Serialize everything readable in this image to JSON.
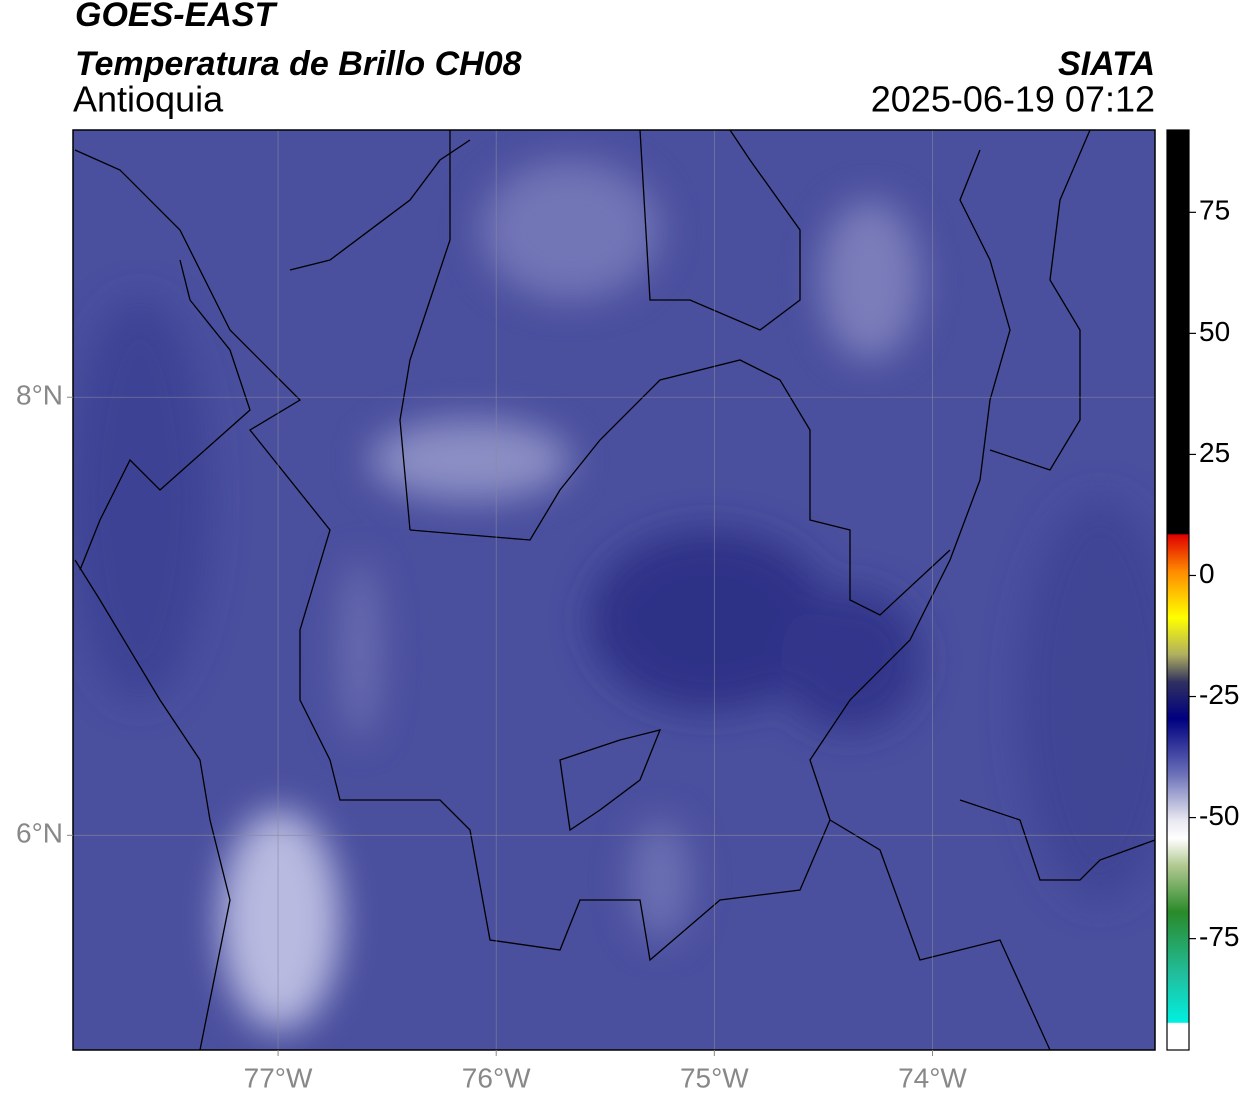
{
  "header": {
    "title": "GOES-EAST",
    "subtitle": "Temperatura de Brillo CH08",
    "region": "Antioquia",
    "source": "SIATA",
    "datetime": "2025-06-19 07:12"
  },
  "map": {
    "xlim": [
      -77.94,
      -72.98
    ],
    "ylim": [
      5.02,
      9.22
    ],
    "xticks": [
      {
        "value": -77,
        "label": "77°W"
      },
      {
        "value": -76,
        "label": "76°W"
      },
      {
        "value": -75,
        "label": "75°W"
      },
      {
        "value": -74,
        "label": "74°W"
      }
    ],
    "yticks": [
      {
        "value": 8,
        "label": "8°N"
      },
      {
        "value": 6,
        "label": "6°N"
      }
    ],
    "grid": true
  },
  "colorbar": {
    "lim": [
      -98,
      92
    ],
    "ticks": [
      75,
      50,
      25,
      0,
      -25,
      -50,
      -75
    ]
  }
}
